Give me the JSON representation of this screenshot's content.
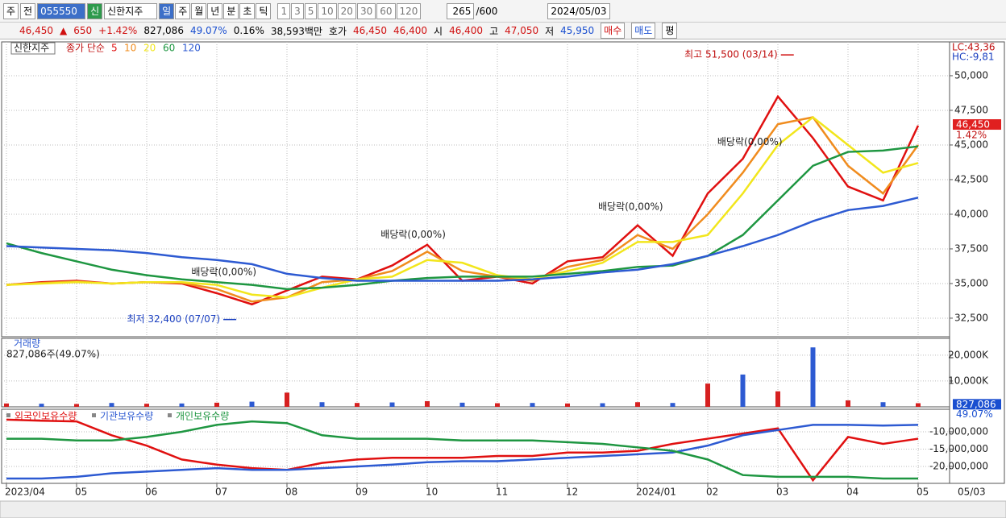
{
  "toolbar": {
    "period": "주",
    "prev": "전",
    "code": "055550",
    "badge": "신",
    "name": "신한지주",
    "units": [
      "일",
      "주",
      "월",
      "년",
      "분",
      "초",
      "틱"
    ],
    "steps": [
      "1",
      "3",
      "5",
      "10",
      "20",
      "30",
      "60",
      "120"
    ],
    "count": "265",
    "max": "/600",
    "date": "2024/05/03"
  },
  "quote": {
    "price": "46,450",
    "arrow": "▲",
    "change": "650",
    "rate": "+1.42%",
    "volume": "827,086",
    "vol_rate": "49.07%",
    "turnover": "0.16%",
    "amount": "38,593백만",
    "ask_label": "호가",
    "ask": "46,450",
    "bid": "46,400",
    "open_label": "시",
    "open": "46,400",
    "high_label": "고",
    "high": "47,050",
    "low_label": "저",
    "low": "45,950",
    "buy": "매수",
    "sell": "매도",
    "avg": "평"
  },
  "chart_data": [
    {
      "type": "line",
      "title": "신한지주",
      "subtitle": "종가 단순",
      "ylim": [
        31160,
        52440
      ],
      "yticks": [
        {
          "value": 32500,
          "label": "32,500"
        },
        {
          "value": 35000,
          "label": "35,000"
        },
        {
          "value": 37500,
          "label": "37,500"
        },
        {
          "value": 40000,
          "label": "40,000"
        },
        {
          "value": 42500,
          "label": "42,500"
        },
        {
          "value": 45000,
          "label": "45,000"
        },
        {
          "value": 47500,
          "label": "47,500"
        },
        {
          "value": 50000,
          "label": "50,000"
        }
      ],
      "grid": true,
      "series": [
        {
          "name": "5",
          "color": "#e01010",
          "values": [
            34900,
            35100,
            35200,
            35000,
            35100,
            35000,
            34300,
            33500,
            34500,
            35500,
            35300,
            36300,
            37800,
            35200,
            35500,
            35000,
            36600,
            36900,
            39200,
            37000,
            41500,
            44000,
            48500,
            45500,
            42000,
            41000,
            46400
          ]
        },
        {
          "name": "10",
          "color": "#f08c1e",
          "values": [
            34900,
            35050,
            35150,
            35000,
            35100,
            35050,
            34600,
            33700,
            34000,
            35100,
            35300,
            35900,
            37300,
            35900,
            35500,
            35200,
            36200,
            36700,
            38500,
            37500,
            40000,
            43000,
            46500,
            47000,
            43500,
            41500,
            45000
          ]
        },
        {
          "name": "20",
          "color": "#f2e61c",
          "values": [
            34900,
            35000,
            35100,
            35000,
            35100,
            35100,
            34900,
            34200,
            34000,
            34700,
            35300,
            35500,
            36700,
            36500,
            35600,
            35300,
            35900,
            36500,
            38000,
            38000,
            38500,
            41500,
            45000,
            47000,
            45000,
            43000,
            43700
          ]
        },
        {
          "name": "60",
          "color": "#1e9641",
          "values": [
            37900,
            37200,
            36600,
            36000,
            35600,
            35300,
            35100,
            34900,
            34600,
            34700,
            34900,
            35200,
            35400,
            35500,
            35500,
            35500,
            35700,
            35900,
            36200,
            36300,
            37000,
            38500,
            41000,
            43500,
            44500,
            44600,
            44900
          ]
        },
        {
          "name": "120",
          "color": "#2d5ad2",
          "values": [
            37700,
            37600,
            37500,
            37400,
            37200,
            36900,
            36700,
            36400,
            35700,
            35400,
            35200,
            35200,
            35200,
            35200,
            35200,
            35300,
            35500,
            35800,
            36000,
            36400,
            37000,
            37700,
            38500,
            39500,
            40300,
            40600,
            41200
          ]
        }
      ],
      "annotations": [
        {
          "text": "최고 51,500 (03/14)",
          "x": 22.5,
          "y": 51500,
          "side": "left"
        },
        {
          "text": "최저 32,400 (07/07)",
          "x": 6.6,
          "y": 32400,
          "side": "left"
        },
        {
          "text": "배당락(0,00%)",
          "x": 6.2,
          "y": 35000,
          "side": "top"
        },
        {
          "text": "배당락(0,00%)",
          "x": 11.6,
          "y": 37700,
          "side": "top"
        },
        {
          "text": "배당락(0,00%)",
          "x": 17.8,
          "y": 39700,
          "side": "top"
        },
        {
          "text": "배당락(0,00%)",
          "x": 21.2,
          "y": 44400,
          "side": "top"
        }
      ],
      "price_tag": {
        "value": 46450,
        "label": "46,450"
      },
      "rate_tag": "1.42%",
      "lc": "LC:43,36",
      "hc": "HC:-9,81"
    },
    {
      "type": "bar",
      "title": "거래량",
      "subtitle": "827,086주(49.07%)",
      "ylim": [
        0,
        26500
      ],
      "yticks": [
        {
          "value": 10000,
          "label": "10,000K"
        },
        {
          "value": 20000,
          "label": "20,000K"
        }
      ],
      "grid": true,
      "series": [
        {
          "name": "거래량",
          "color": "#d62020",
          "values": [
            1300,
            1200,
            1100,
            1500,
            1200,
            1300,
            1600,
            2000,
            5500,
            1800,
            1500,
            1700,
            2200,
            1600,
            1400,
            1500,
            1300,
            1400,
            1800,
            1500,
            9000,
            12500,
            6000,
            23000,
            2500,
            1800,
            1400
          ]
        }
      ],
      "value_tag": {
        "value": 827,
        "label": "827,086"
      },
      "rate_tag": "49.07%"
    },
    {
      "type": "line",
      "ylim": [
        -24900000,
        -3490000
      ],
      "yticks": [
        {
          "value": -10000000,
          "label": "-10,000,000"
        },
        {
          "value": -15000000,
          "label": "-15,000,000"
        },
        {
          "value": -20000000,
          "label": "-20,000,000"
        }
      ],
      "grid": true,
      "categories": [
        "2023/04",
        null,
        "05",
        null,
        "06",
        null,
        "07",
        null,
        "08",
        null,
        "09",
        null,
        "10",
        null,
        "11",
        null,
        "12",
        null,
        "2024/01",
        null,
        "02",
        null,
        "03",
        null,
        "04",
        null,
        "05"
      ],
      "date_label": "05/03",
      "series": [
        {
          "name": "외국인보유수량",
          "color": "#e01010",
          "values": [
            -6500000,
            -6800000,
            -7000000,
            -11000000,
            -14000000,
            -18000000,
            -19500000,
            -20500000,
            -21000000,
            -19000000,
            -18000000,
            -17500000,
            -17500000,
            -17500000,
            -17000000,
            -17000000,
            -16000000,
            -16000000,
            -15500000,
            -13500000,
            -12000000,
            -10500000,
            -9000000,
            -24000000,
            -11500000,
            -13500000,
            -12000000
          ]
        },
        {
          "name": "기관보유수량",
          "color": "#2d5ad2",
          "values": [
            -23500000,
            -23500000,
            -23000000,
            -22000000,
            -21500000,
            -21000000,
            -20500000,
            -21000000,
            -21000000,
            -20500000,
            -20000000,
            -19500000,
            -18800000,
            -18500000,
            -18500000,
            -18000000,
            -17500000,
            -17000000,
            -16500000,
            -16000000,
            -14000000,
            -11000000,
            -9500000,
            -8000000,
            -8000000,
            -8200000,
            -8000000
          ]
        },
        {
          "name": "개인보유수량",
          "color": "#1e9641",
          "values": [
            -12000000,
            -12000000,
            -12500000,
            -12500000,
            -11500000,
            -10000000,
            -8000000,
            -7000000,
            -7500000,
            -11000000,
            -12000000,
            -12000000,
            -12000000,
            -12500000,
            -12500000,
            -12500000,
            -13000000,
            -13500000,
            -14500000,
            -15500000,
            -18000000,
            -22500000,
            -23000000,
            -23000000,
            -23000000,
            -23500000,
            -23500000
          ]
        }
      ]
    }
  ]
}
